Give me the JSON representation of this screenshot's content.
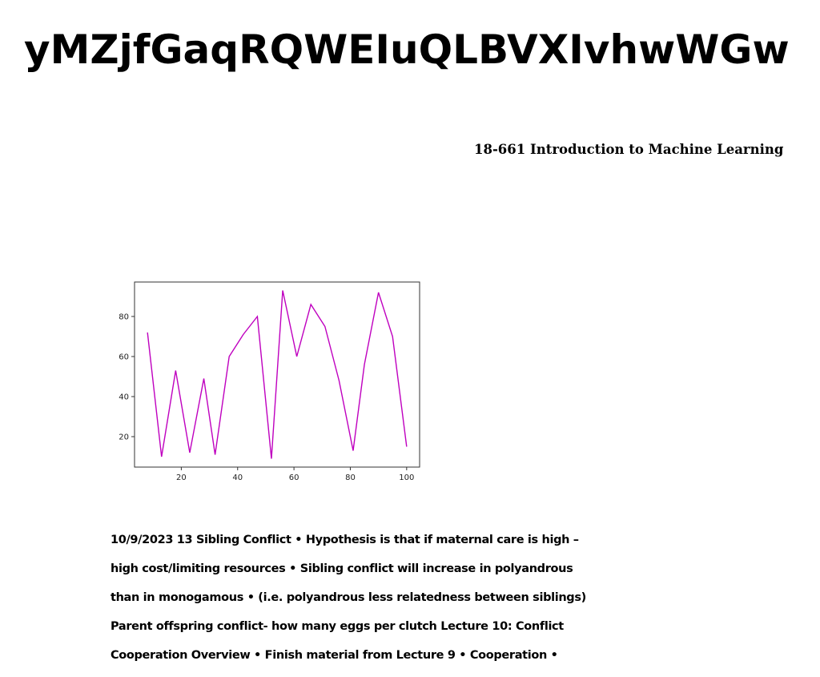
{
  "page": {
    "title": "yMZjfGaqRQWEIuQLBVXIvhwWGw",
    "course_label": "18-661 Introduction to Machine Learning",
    "body_lines": [
      "10/9/2023 13 Sibling Conflict • Hypothesis is that if maternal care is high –",
      "high cost/limiting resources • Sibling conflict will increase in polyandrous",
      "than in monogamous • (i.e. polyandrous less relatedness between siblings)",
      "Parent offspring conflict- how many eggs per clutch Lecture 10: Conflict",
      "Cooperation Overview • Finish material from Lecture 9 • Cooperation •"
    ]
  },
  "chart_data": {
    "type": "line",
    "title": "",
    "xlabel": "",
    "ylabel": "",
    "x": [
      8,
      13,
      18,
      23,
      28,
      32,
      37,
      42,
      47,
      52,
      56,
      61,
      66,
      71,
      76,
      81,
      85,
      90,
      95,
      100
    ],
    "series": [
      {
        "color": "#bf00bf",
        "values": [
          72,
          10,
          53,
          12,
          49,
          11,
          60,
          71,
          80,
          9,
          93,
          60,
          86,
          75,
          48,
          13,
          56,
          92,
          70,
          15
        ]
      }
    ],
    "xticks": [
      20,
      40,
      60,
      80,
      100
    ],
    "yticks": [
      20,
      40,
      60,
      80
    ],
    "xlim": [
      3.4,
      104.6
    ],
    "ylim": [
      4.8,
      97.2
    ],
    "grid": false,
    "legend": "none"
  }
}
